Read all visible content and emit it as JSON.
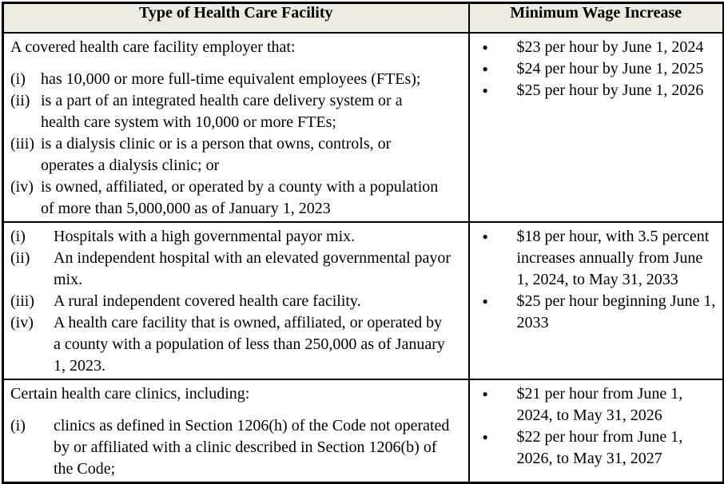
{
  "colors": {
    "header_bg": "#edebe0",
    "border": "#000000",
    "text": "#000000"
  },
  "icons": {
    "bullet": "●"
  },
  "header": {
    "facility_col": "Type of Health Care Facility",
    "wage_col": "Minimum Wage Increase"
  },
  "rows": [
    {
      "facility": {
        "intro": "A covered health care facility employer that:",
        "items": [
          {
            "num": "(i)",
            "text": "has 10,000 or more full-time equivalent employees (FTEs);"
          },
          {
            "num": "(ii)",
            "text": "is a part of an integrated health care delivery system or a health care system with 10,000 or more FTEs;"
          },
          {
            "num": "(iii)",
            "text": "is a dialysis clinic or is a person that owns, controls, or operates a dialysis clinic; or"
          },
          {
            "num": "(iv)",
            "text": "is owned, affiliated, or operated by a county with a population of more than 5,000,000 as of January 1, 2023"
          }
        ]
      },
      "wage": [
        "$23 per hour by June 1, 2024",
        "$24 per hour by June 1, 2025",
        "$25 per hour by June 1, 2026"
      ]
    },
    {
      "facility": {
        "items": [
          {
            "num": "(i)",
            "text": "Hospitals with a high governmental payor mix."
          },
          {
            "num": "(ii)",
            "text": "An independent hospital with an elevated governmental payor mix."
          },
          {
            "num": "(iii)",
            "text": "A rural independent covered health care facility."
          },
          {
            "num": "(iv)",
            "text": "A health care facility that is owned, affiliated, or operated by a county with a population of less than 250,000 as of January 1, 2023."
          }
        ]
      },
      "wage": [
        "$18 per hour, with 3.5 percent increases annually from June 1, 2024, to May 31, 2033",
        "$25 per hour beginning June 1, 2033"
      ]
    },
    {
      "facility": {
        "intro": "Certain health care clinics, including:",
        "items": [
          {
            "num": "(i)",
            "text": "clinics as defined in Section 1206(h) of the Code not operated by or affiliated with a clinic described in Section 1206(b) of the Code;"
          }
        ]
      },
      "wage": [
        "$21 per hour from June 1, 2024, to May 31, 2026",
        "$22 per hour from June 1, 2026, to May 31, 2027"
      ]
    }
  ]
}
